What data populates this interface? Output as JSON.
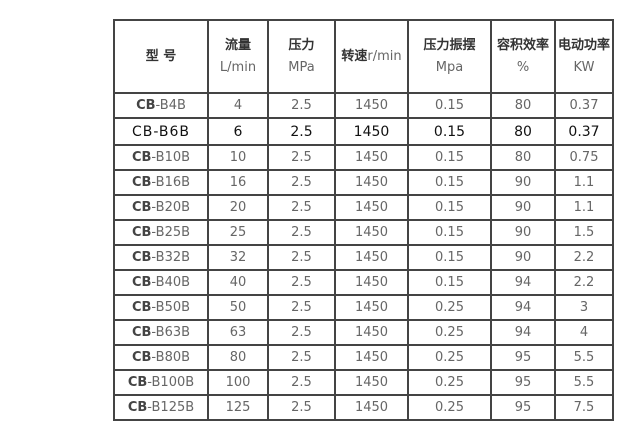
{
  "headers": [
    {
      "cn": "型 号",
      "unit": ""
    },
    {
      "cn": "流量",
      "unit": "L/min"
    },
    {
      "cn": "压力",
      "unit": "MPa"
    },
    {
      "cn": "转速",
      "unit": "r/min"
    },
    {
      "cn": "压力振摆",
      "unit": "Mpa"
    },
    {
      "cn": "容积效率",
      "unit": "%"
    },
    {
      "cn": "电动功率",
      "unit": "KW"
    }
  ],
  "rows": [
    {
      "prefix": "CB",
      "suffix": "-B4B",
      "flow": "4",
      "pressure": "2.5",
      "speed": "1450",
      "swing": "0.15",
      "eff": "80",
      "power": "0.37"
    },
    {
      "prefix": "CB",
      "suffix": "-B6B",
      "flow": "6",
      "pressure": "2.5",
      "speed": "1450",
      "swing": "0.15",
      "eff": "80",
      "power": "0.37"
    },
    {
      "prefix": "CB",
      "suffix": "-B10B",
      "flow": "10",
      "pressure": "2.5",
      "speed": "1450",
      "swing": "0.15",
      "eff": "80",
      "power": "0.75"
    },
    {
      "prefix": "CB",
      "suffix": "-B16B",
      "flow": "16",
      "pressure": "2.5",
      "speed": "1450",
      "swing": "0.15",
      "eff": "90",
      "power": "1.1"
    },
    {
      "prefix": "CB",
      "suffix": "-B20B",
      "flow": "20",
      "pressure": "2.5",
      "speed": "1450",
      "swing": "0.15",
      "eff": "90",
      "power": "1.1"
    },
    {
      "prefix": "CB",
      "suffix": "-B25B",
      "flow": "25",
      "pressure": "2.5",
      "speed": "1450",
      "swing": "0.15",
      "eff": "90",
      "power": "1.5"
    },
    {
      "prefix": "CB",
      "suffix": "-B32B",
      "flow": "32",
      "pressure": "2.5",
      "speed": "1450",
      "swing": "0.15",
      "eff": "90",
      "power": "2.2"
    },
    {
      "prefix": "CB",
      "suffix": "-B40B",
      "flow": "40",
      "pressure": "2.5",
      "speed": "1450",
      "swing": "0.15",
      "eff": "94",
      "power": "2.2"
    },
    {
      "prefix": "CB",
      "suffix": "-B50B",
      "flow": "50",
      "pressure": "2.5",
      "speed": "1450",
      "swing": "0.25",
      "eff": "94",
      "power": "3"
    },
    {
      "prefix": "CB",
      "suffix": "-B63B",
      "flow": "63",
      "pressure": "2.5",
      "speed": "1450",
      "swing": "0.25",
      "eff": "94",
      "power": "4"
    },
    {
      "prefix": "CB",
      "suffix": "-B80B",
      "flow": "80",
      "pressure": "2.5",
      "speed": "1450",
      "swing": "0.25",
      "eff": "95",
      "power": "5.5"
    },
    {
      "prefix": "CB",
      "suffix": "-B100B",
      "flow": "100",
      "pressure": "2.5",
      "speed": "1450",
      "swing": "0.25",
      "eff": "95",
      "power": "5.5"
    },
    {
      "prefix": "CB",
      "suffix": "-B125B",
      "flow": "125",
      "pressure": "2.5",
      "speed": "1450",
      "swing": "0.25",
      "eff": "95",
      "power": "7.5"
    }
  ]
}
